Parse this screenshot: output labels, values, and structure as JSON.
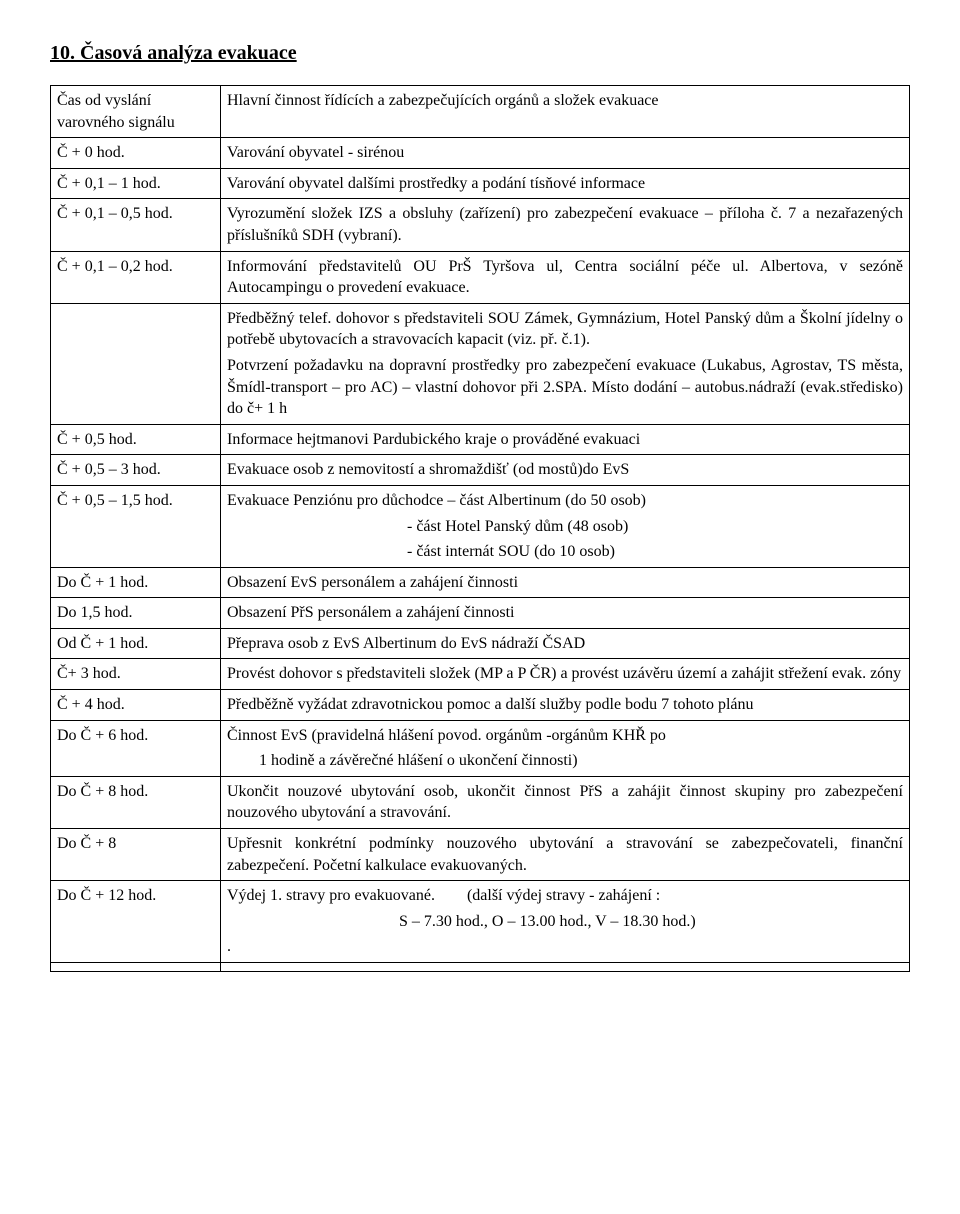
{
  "heading": "10. Časová analýza evakuace",
  "header_row": {
    "left": "Čas od vyslání varovného signálu",
    "right": "Hlavní činnost řídících a zabezpečujících orgánů a složek evakuace"
  },
  "rows": [
    {
      "left": "Č + 0 hod.",
      "right": "Varování obyvatel - sirénou"
    },
    {
      "left": "Č + 0,1 – 1 hod.",
      "right": "Varování obyvatel dalšími prostředky a podání tísňové  informace"
    },
    {
      "left": "Č + 0,1 – 0,5 hod.",
      "right": "Vyrozumění složek IZS a obsluhy (zařízení) pro zabezpečení evakuace – příloha č. 7 a nezařazených příslušníků SDH (vybraní)."
    },
    {
      "left": "Č + 0,1 – 0,2 hod.",
      "right": "Informování představitelů OU PrŠ Tyršova ul, Centra sociální péče ul. Albertova, v sezóně Autocampingu o provedení evakuace."
    },
    {
      "left": "",
      "right_multi": [
        "Předběžný telef. dohovor s představiteli SOU Zámek, Gymnázium, Hotel Panský dům a Školní jídelny o potřebě ubytovacích a stravovacích kapacit (viz. př. č.1).",
        "Potvrzení požadavku na dopravní prostředky pro zabezpečení evakuace (Lukabus, Agrostav, TS města, Šmídl-transport – pro AC) – vlastní dohovor při 2.SPA. Místo dodání – autobus.nádraží (evak.středisko) do č+ 1 h"
      ]
    },
    {
      "left": "Č + 0,5 hod.",
      "right": "Informace hejtmanovi Pardubického kraje o prováděné evakuaci"
    },
    {
      "left": "Č + 0,5 – 3 hod.",
      "right": "Evakuace osob z nemovitostí a shromaždišť (od mostů)do EvS"
    },
    {
      "left": "Č + 0,5 – 1,5 hod.",
      "right_multi": [
        "Evakuace Penziónu pro důchodce – část Albertinum (do 50 osob)",
        "                                             - část Hotel Panský dům (48 osob)",
        "                                             - část internát SOU (do 10 osob)"
      ],
      "pre": true
    },
    {
      "left": "Do Č + 1 hod.",
      "right": "Obsazení EvS personálem a zahájení činnosti"
    },
    {
      "left": "Do 1,5 hod.",
      "right": "Obsazení PřS personálem a zahájení činnosti"
    },
    {
      "left": "Od Č + 1 hod.",
      "right": "Přeprava osob z EvS Albertinum do EvS nádraží ČSAD"
    },
    {
      "left": "Č+ 3 hod.",
      "right": "Provést dohovor s představiteli složek (MP a P ČR) a provést uzávěru území a zahájit střežení evak. zóny"
    },
    {
      "left": "Č + 4 hod.",
      "right": "Předběžně vyžádat zdravotnickou pomoc a další služby podle bodu 7 tohoto plánu"
    },
    {
      "left": "Do Č + 6 hod.",
      "right_multi": [
        "Činnost EvS (pravidelná hlášení povod. orgánům -orgánům KHŘ po",
        "        1 hodině a závěrečné hlášení o ukončení činnosti)"
      ],
      "pre": true
    },
    {
      "left": "Do Č + 8 hod.",
      "right": "Ukončit nouzové ubytování osob, ukončit činnost PřS a zahájit činnost skupiny pro zabezpečení nouzového ubytování a stravování."
    },
    {
      "left": "Do Č + 8",
      "right": "Upřesnit konkrétní podmínky nouzového ubytování a stravování se zabezpečovateli, finanční zabezpečení. Početní kalkulace evakuovaných."
    },
    {
      "left": "Do Č + 12 hod.",
      "right_multi": [
        "Výdej 1. stravy pro evakuované.        (další výdej stravy - zahájení :",
        "                                           S – 7.30 hod., O – 13.00 hod., V – 18.30 hod.)",
        "."
      ],
      "pre": true
    },
    {
      "left": "",
      "right": ""
    }
  ]
}
